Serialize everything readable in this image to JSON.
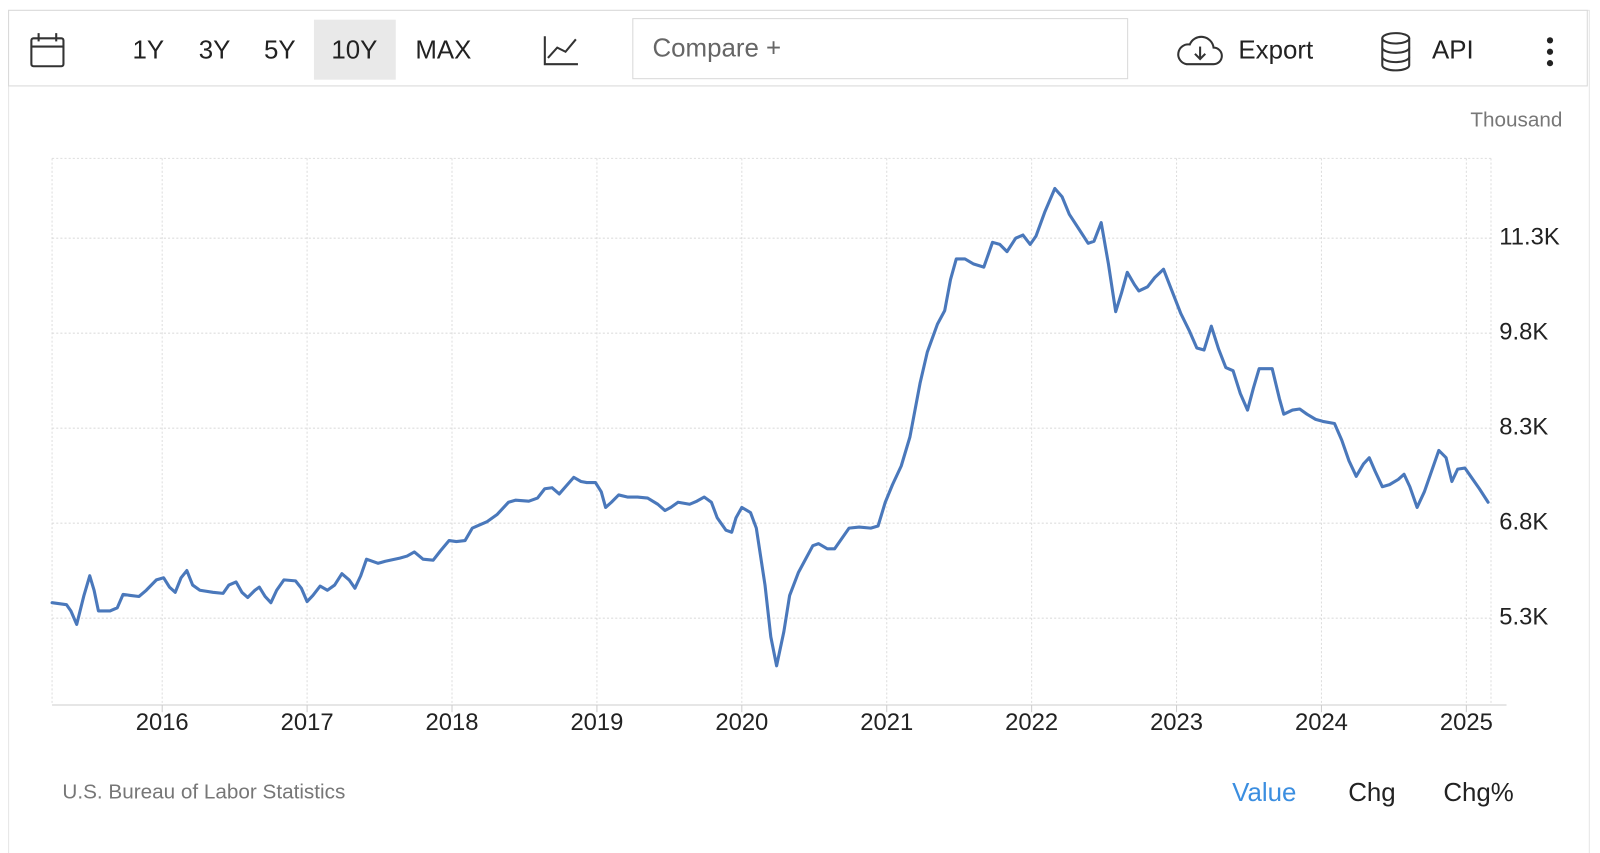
{
  "toolbar": {
    "ranges": [
      "1Y",
      "3Y",
      "5Y",
      "10Y",
      "MAX"
    ],
    "selected_range": "10Y",
    "compare": "Compare +",
    "export": "Export",
    "api": "API"
  },
  "chart_data": {
    "type": "line",
    "unit_label": "Thousand",
    "source": "U.S. Bureau of Labor Statistics",
    "views": [
      "Value",
      "Chg",
      "Chg%"
    ],
    "active_view": "Value",
    "x": [
      2015.24,
      2015.34,
      2015.37,
      2015.41,
      2015.46,
      2015.5,
      2015.53,
      2015.56,
      2015.64,
      2015.69,
      2015.73,
      2015.78,
      2015.84,
      2015.89,
      2015.96,
      2016.01,
      2016.05,
      2016.09,
      2016.13,
      2016.17,
      2016.21,
      2016.26,
      2016.35,
      2016.42,
      2016.46,
      2016.51,
      2016.55,
      2016.59,
      2016.64,
      2016.67,
      2016.71,
      2016.75,
      2016.79,
      2016.84,
      2016.92,
      2016.96,
      2017.0,
      2017.04,
      2017.09,
      2017.14,
      2017.19,
      2017.24,
      2017.29,
      2017.33,
      2017.37,
      2017.41,
      2017.49,
      2017.54,
      2017.64,
      2017.69,
      2017.74,
      2017.8,
      2017.87,
      2017.92,
      2017.98,
      2018.03,
      2018.09,
      2018.14,
      2018.19,
      2018.24,
      2018.31,
      2018.39,
      2018.44,
      2018.53,
      2018.59,
      2018.64,
      2018.69,
      2018.74,
      2018.79,
      2018.84,
      2018.89,
      2018.93,
      2018.99,
      2019.03,
      2019.06,
      2019.1,
      2019.15,
      2019.21,
      2019.28,
      2019.35,
      2019.42,
      2019.47,
      2019.51,
      2019.56,
      2019.64,
      2019.69,
      2019.74,
      2019.79,
      2019.83,
      2019.89,
      2019.93,
      2019.96,
      2020.0,
      2020.06,
      2020.1,
      2020.16,
      2020.2,
      2020.24,
      2020.29,
      2020.33,
      2020.39,
      2020.44,
      2020.49,
      2020.53,
      2020.59,
      2020.64,
      2020.69,
      2020.74,
      2020.81,
      2020.89,
      2020.94,
      2020.99,
      2021.04,
      2021.1,
      2021.16,
      2021.23,
      2021.28,
      2021.35,
      2021.4,
      2021.44,
      2021.48,
      2021.54,
      2021.6,
      2021.67,
      2021.73,
      2021.78,
      2021.83,
      2021.89,
      2021.94,
      2021.99,
      2022.03,
      2022.09,
      2022.16,
      2022.21,
      2022.26,
      2022.33,
      2022.39,
      2022.43,
      2022.48,
      2022.53,
      2022.58,
      2022.62,
      2022.66,
      2022.71,
      2022.74,
      2022.8,
      2022.85,
      2022.91,
      2022.96,
      2023.03,
      2023.09,
      2023.14,
      2023.19,
      2023.24,
      2023.29,
      2023.34,
      2023.39,
      2023.44,
      2023.49,
      2023.53,
      2023.57,
      2023.66,
      2023.71,
      2023.74,
      2023.8,
      2023.85,
      2023.9,
      2023.96,
      2024.01,
      2024.09,
      2024.14,
      2024.19,
      2024.24,
      2024.29,
      2024.33,
      2024.37,
      2024.42,
      2024.47,
      2024.53,
      2024.57,
      2024.61,
      2024.66,
      2024.71,
      2024.76,
      2024.81,
      2024.86,
      2024.9,
      2024.94,
      2024.99,
      2025.03,
      2025.09,
      2025.15
    ],
    "series": [
      {
        "color": "#4a78bb",
        "values": [
          5545,
          5513,
          5414,
          5202,
          5660,
          5970,
          5741,
          5414,
          5414,
          5464,
          5676,
          5660,
          5643,
          5741,
          5905,
          5938,
          5791,
          5709,
          5938,
          6052,
          5823,
          5741,
          5709,
          5692,
          5823,
          5872,
          5709,
          5627,
          5741,
          5791,
          5643,
          5545,
          5741,
          5905,
          5889,
          5774,
          5562,
          5660,
          5807,
          5741,
          5823,
          6003,
          5905,
          5774,
          5970,
          6232,
          6167,
          6199,
          6248,
          6281,
          6346,
          6232,
          6216,
          6363,
          6526,
          6510,
          6526,
          6722,
          6772,
          6821,
          6935,
          7131,
          7164,
          7148,
          7197,
          7344,
          7360,
          7262,
          7393,
          7524,
          7458,
          7442,
          7442,
          7295,
          7049,
          7131,
          7246,
          7213,
          7213,
          7197,
          7099,
          7000,
          7049,
          7131,
          7099,
          7148,
          7213,
          7131,
          6886,
          6690,
          6657,
          6886,
          7049,
          6968,
          6722,
          5823,
          5006,
          4548,
          5087,
          5660,
          6019,
          6232,
          6445,
          6477,
          6395,
          6395,
          6559,
          6722,
          6739,
          6722,
          6755,
          7131,
          7409,
          7703,
          8161,
          9011,
          9502,
          9943,
          10156,
          10646,
          10973,
          10973,
          10892,
          10843,
          11235,
          11202,
          11088,
          11300,
          11350,
          11202,
          11333,
          11709,
          12085,
          11954,
          11677,
          11431,
          11219,
          11251,
          11546,
          10892,
          10140,
          10434,
          10761,
          10565,
          10467,
          10532,
          10679,
          10810,
          10516,
          10107,
          9829,
          9567,
          9535,
          9911,
          9551,
          9257,
          9208,
          8848,
          8586,
          8930,
          9240,
          9240,
          8766,
          8521,
          8586,
          8603,
          8521,
          8439,
          8407,
          8374,
          8112,
          7785,
          7540,
          7736,
          7834,
          7622,
          7376,
          7409,
          7491,
          7573,
          7376,
          7049,
          7295,
          7622,
          7949,
          7834,
          7458,
          7654,
          7671,
          7540,
          7344,
          7131
        ]
      }
    ],
    "xlim": [
      2015.24,
      2025.17
    ],
    "ylim": [
      3930,
      12560
    ],
    "xticks": [
      2016,
      2017,
      2018,
      2019,
      2020,
      2021,
      2022,
      2023,
      2024,
      2025
    ],
    "yticks": [
      {
        "value": 5300,
        "label": "5.3K"
      },
      {
        "value": 6800,
        "label": "6.8K"
      },
      {
        "value": 8300,
        "label": "8.3K"
      },
      {
        "value": 9800,
        "label": "9.8K"
      },
      {
        "value": 11300,
        "label": "11.3K"
      }
    ],
    "grid": true
  }
}
